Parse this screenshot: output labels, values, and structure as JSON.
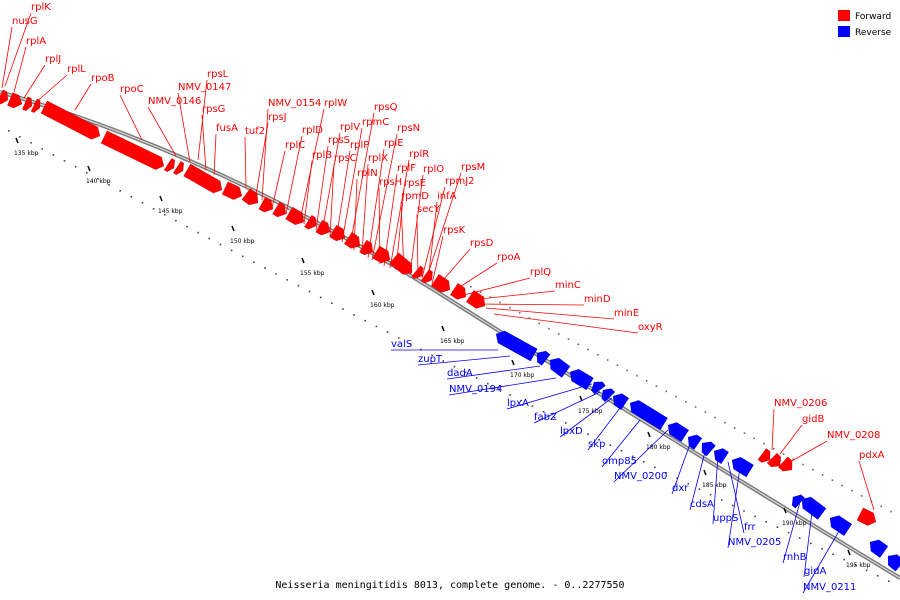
{
  "title": "Neisseria meningitidis 8013, complete genome. - 0..2277550",
  "colors": {
    "forward": "#ff0000",
    "reverse": "#0000ff",
    "backbone": "#7a7a7a"
  },
  "legend": [
    {
      "label": "Forward",
      "color": "#ff0000"
    },
    {
      "label": "Reverse",
      "color": "#0000ff"
    }
  ],
  "scale": {
    "ticks": [
      "135 kbp",
      "140 kbp",
      "145 kbp",
      "150 kbp",
      "155 kbp",
      "160 kbp",
      "165 kbp",
      "170 kbp",
      "175 kbp",
      "180 kbp",
      "185 kbp",
      "190 kbp",
      "195 kbp"
    ]
  },
  "genes": {
    "forward_top": [
      "rplK",
      "nusG",
      "rplA",
      "rplJ",
      "rplL",
      "rpoB",
      "rpoC",
      "NMV_0146",
      "NMV_0147",
      "rpsL",
      "rpsG",
      "fusA",
      "tuf2",
      "rpsJ",
      "NMV_0154",
      "rplC",
      "rplD",
      "rplW",
      "rplB",
      "rpsS",
      "rplV",
      "rpsC",
      "rplP",
      "rpmC",
      "rpsQ",
      "rplN",
      "rplX",
      "rplE",
      "rpsN",
      "rpsH",
      "rplF",
      "rplR",
      "rpsE",
      "rpmD",
      "rplO",
      "secY",
      "rpmJ2",
      "rpsM",
      "infA",
      "rpsK",
      "rpsD",
      "rpoA",
      "rplQ",
      "minC",
      "minD",
      "minE",
      "oxyR"
    ],
    "reverse": [
      "valS",
      "zupT",
      "dadA",
      "NMV_0194",
      "lpxA",
      "fabZ",
      "lpxD",
      "skp",
      "omp85",
      "NMV_0200",
      "dxr",
      "cdsA",
      "uppS",
      "frr",
      "NMV_0205",
      "rnhB",
      "gidA",
      "NMV_0211"
    ],
    "forward_lower": [
      "NMV_0206",
      "gidB",
      "NMV_0208",
      "pdxA"
    ]
  }
}
